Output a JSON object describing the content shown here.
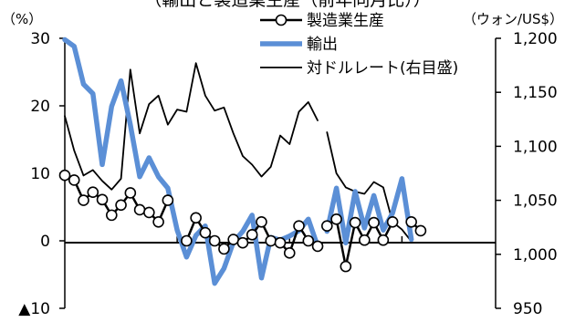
{
  "chart_data": {
    "type": "line",
    "title": "（輸出と製造業生産（前年同月比））",
    "left_axis": {
      "unit": "（%）",
      "ylim": [
        -10,
        30
      ],
      "ticks": [
        -10,
        0,
        10,
        20,
        30
      ],
      "tick_labels": [
        "▲10",
        "0",
        "10",
        "20",
        "30"
      ]
    },
    "right_axis": {
      "unit": "（ウォン/US$）",
      "ylim": [
        950,
        1200
      ],
      "ticks": [
        950,
        1000,
        1050,
        1100,
        1150,
        1200
      ],
      "tick_labels": [
        "950",
        "1,000",
        "1,050",
        "1,100",
        "1,150",
        "1,200"
      ]
    },
    "grid": false,
    "legend_position": "top",
    "x": [
      1,
      2,
      3,
      4,
      5,
      6,
      7,
      8,
      9,
      10,
      11,
      12,
      13,
      14,
      15,
      16,
      17,
      18,
      19,
      20,
      21,
      22,
      23,
      24,
      25,
      26,
      27,
      28,
      28.6,
      29,
      30,
      31,
      32,
      33,
      34,
      35,
      36,
      37,
      38,
      39,
      40,
      41,
      42,
      43,
      44,
      45,
      46,
      47
    ],
    "series": [
      {
        "name": "製造業生産",
        "axis": "left",
        "color": "#000000",
        "marker": "circle-open",
        "values": [
          9.7,
          9,
          6,
          7.2,
          6.1,
          3.8,
          5.3,
          7.1,
          4.6,
          4.2,
          2.8,
          6,
          null,
          0,
          3.4,
          1.2,
          0,
          -1.2,
          0.2,
          -0.3,
          0.9,
          2.8,
          0,
          -0.3,
          -1.8,
          2.2,
          0,
          -0.8,
          null,
          2.2,
          3.2,
          -3.8,
          2.7,
          0.1,
          2.7,
          0.1,
          2.8,
          null,
          2.8,
          1.5,
          null,
          null,
          null,
          null,
          null,
          null,
          null,
          null
        ]
      },
      {
        "name": "輸出",
        "axis": "left",
        "color": "#5b8fd6",
        "values": [
          29.8,
          28.8,
          23.2,
          21.8,
          11.3,
          19.9,
          23.7,
          17.2,
          9.5,
          12.3,
          9.5,
          7.8,
          1.6,
          -2.4,
          0.8,
          2.2,
          -6.3,
          -4.1,
          -0.2,
          1.4,
          3.8,
          -5.5,
          0.5,
          0.1,
          0.7,
          1.5,
          3.2,
          -0.8,
          null,
          1.4,
          7.8,
          -0.3,
          7.3,
          1.9,
          6.7,
          1.6,
          4.1,
          9.2,
          0.2,
          null,
          null,
          null,
          null,
          null,
          null,
          null,
          null,
          null
        ]
      },
      {
        "name": "対ドルレート(右目盛)",
        "axis": "right",
        "color": "#000000",
        "values": [
          1128,
          1096,
          1073,
          1078,
          1068,
          1060,
          1070,
          1171,
          1112,
          1139,
          1147,
          1120,
          1134,
          1132,
          1177,
          1147,
          1133,
          1136,
          1112,
          1091,
          1083,
          1072,
          1081,
          1110,
          1102,
          1132,
          1141,
          1124,
          null,
          1113,
          1075,
          1062,
          1058,
          1056,
          1067,
          1062,
          1030,
          1023,
          1012,
          null,
          null,
          null,
          null,
          null,
          null,
          null,
          null,
          null
        ]
      }
    ]
  }
}
